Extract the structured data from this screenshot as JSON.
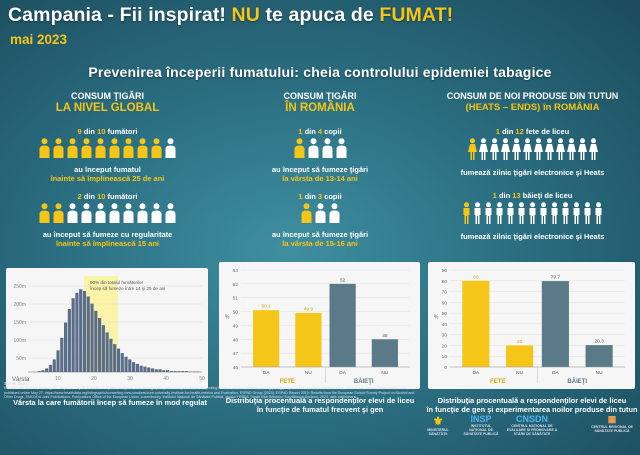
{
  "header": {
    "title_part1": "Campania - Fii inspirat! ",
    "title_nu": "NU",
    "title_part2": " te apuca de ",
    "title_fumat": "FUMAT!",
    "date": "mai 2023",
    "headline": "Prevenirea începerii fumatului: cheia controlului epidemiei tabagice"
  },
  "colors": {
    "accent": "#f5c518",
    "bar_yellow": "#f5c518",
    "bar_slate": "#5b7a87",
    "bg": "#2b6f82"
  },
  "col_global": {
    "heading1": "CONSUM ŢIGĂRI",
    "heading2": "LA NIVEL GLOBAL",
    "stat1_n": "9",
    "stat1_rest": "din",
    "stat1_total": "10",
    "stat1_label": "fumători",
    "text1_a": "au început fumatul",
    "text1_b": "înainte să împlinească 25 de ani",
    "stat2_n": "2",
    "stat2_rest": "din",
    "stat2_total": "10",
    "stat2_label": "fumători",
    "text2_a": "au început să fumeze cu regularitate",
    "text2_b": "înainte să împlinească 15 ani",
    "icons_highlight_1": 9,
    "icons_total_1": 10,
    "icons_highlight_2": 2,
    "icons_total_2": 10,
    "caption": "Vârsta la care fumătorii încep să fumeze în mod regulat"
  },
  "histogram": {
    "ylabels": [
      "250m",
      "200m",
      "150m",
      "100m",
      "50m"
    ],
    "xlabels": [
      "10",
      "20",
      "30",
      "40",
      "50"
    ],
    "xlabel": "Vârsta",
    "annotation_1": "90% din totalul fumătorilor",
    "annotation_2": "încep să fumeze între 14 și 25 de ani"
  },
  "col_romania": {
    "heading1": "CONSUM ŢIGĂRI",
    "heading2": "ÎN ROMÂNIA",
    "stat1_n": "1",
    "stat1_rest": "din",
    "stat1_total": "4",
    "stat1_label": "copii",
    "text1_a": "au început să fumeze ţigări",
    "text1_b": "la vârsta de 13-14 ani",
    "stat2_n": "1",
    "stat2_rest": "din",
    "stat2_total": "3",
    "stat2_label": "copii",
    "text2_a": "au început să fumeze ţigări",
    "text2_b": "la vârsta de 15-16 ani",
    "icons_highlight_1": 1,
    "icons_total_1": 4,
    "icons_highlight_2": 1,
    "icons_total_2": 3,
    "caption_a": "Distribuţia procentuală a respondenţilor elevi de liceu",
    "caption_b": "în funcţie de fumatul frecvent şi gen"
  },
  "col_new_products": {
    "heading1": "CONSUM DE NOI PRODUSE DIN TUTUN",
    "heading2": "(HEATS – ENDS) în ROMÂNIA",
    "stat1_n": "1",
    "stat1_rest": "din",
    "stat1_total": "12",
    "stat1_label": "fete de liceu",
    "text1": "fumează zilnic ţigări electronice şi Heats",
    "stat2_n": "1",
    "stat2_rest": "din",
    "stat2_total": "13",
    "stat2_label": "băieţi de liceu",
    "text2": "fumează zilnic ţigări electronice şi Heats",
    "icons_highlight_1": 1,
    "icons_total_1": 12,
    "icons_highlight_2": 1,
    "icons_total_2": 13,
    "caption_a": "Distribuţia procentuală a respondenţilor elevi de liceu",
    "caption_b": "în funcţie de gen şi experimentarea noilor produse din tutun"
  },
  "chart_data": [
    {
      "type": "bar",
      "categories": [
        "DA",
        "NU",
        "DA",
        "NU"
      ],
      "groups": [
        "FETE",
        "BĂIEŢI"
      ],
      "values": [
        50.1,
        49.9,
        52,
        48
      ],
      "value_labels": [
        "50.1",
        "49.9",
        "52",
        "48"
      ],
      "ylim": [
        46,
        53
      ],
      "yticks": [
        "53",
        "52",
        "51",
        "50",
        "49",
        "48",
        "47",
        "46"
      ],
      "ylabel": "%"
    },
    {
      "type": "bar",
      "categories": [
        "DA",
        "NU",
        "DA",
        "NU"
      ],
      "groups": [
        "FETE",
        "BĂIEŢI"
      ],
      "values": [
        80,
        20,
        79.7,
        20.3
      ],
      "value_labels": [
        "80",
        "20",
        "79.7",
        "20.3"
      ],
      "ylim": [
        0,
        90
      ],
      "yticks": [
        "90",
        "80",
        "70",
        "60",
        "50",
        "40",
        "30",
        "20",
        "10",
        "0"
      ],
      "ylabel": "%"
    }
  ],
  "sources": {
    "label": "Surse date:",
    "text": "Reitsma MB, Flor LS, Mullany EC, Gupta V, Hay SI, Gakidou E. Spatial, temporal, and demographic patterns in prevalence of smoking tobacco use and initiation among young people in 204 countries and territories, 1990–2019. Lancet Public Health 2021; published online May 27. https://www.healthdata.org/infographic/converting-new-smokers/cure-university-institute-for-health-metrics and Evaluation. ESPAD Group (2020), ESPAD Report 2019: Results from the European School Survey Project on Alcohol and Other Drugs, EMCDDA Joint Publications, Publications Office of the European Union, Luxembourg. Institutul Naţional de Sănătate Publică, studiul YRBSS (Youth Risk Behavior Surveillance System), 2023, date preliminare."
  },
  "logos": [
    "MINISTERUL SĂNĂTĂȚII",
    "INSTITUTUL NAȚIONAL DE SĂNĂTATE PUBLICĂ",
    "INSP",
    "CENTRUL NAȚIONAL DE EVALUARE ȘI PROMOVARE A STĂRII DE SĂNĂTATE",
    "CNSDN",
    "CENTRUL REGIONAL DE SĂNĂTATE PUBLICĂ"
  ]
}
